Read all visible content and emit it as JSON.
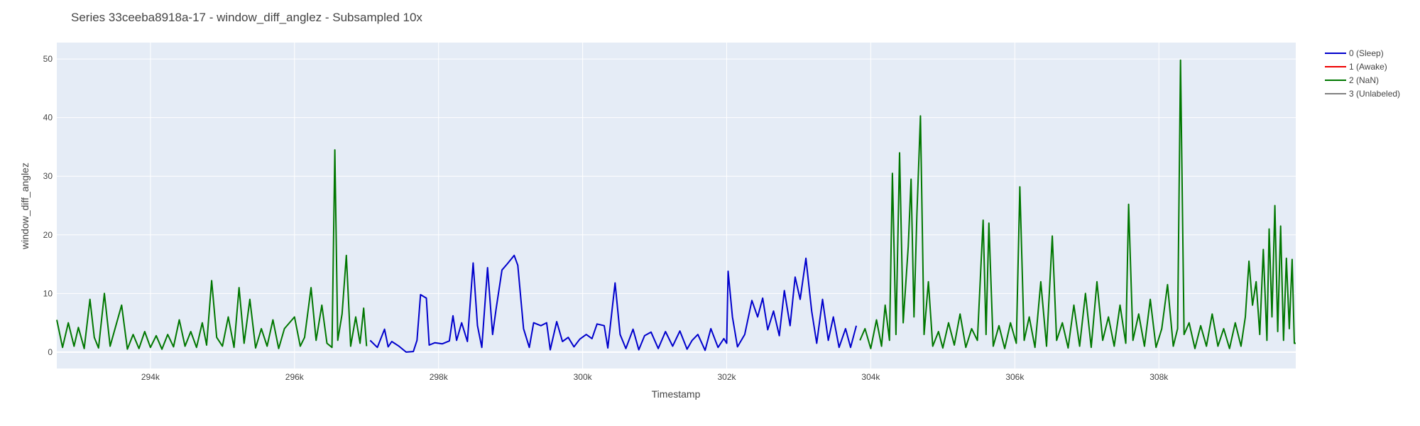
{
  "chart_data": {
    "type": "line",
    "title": "Series 33ceeba8918a-17 - window_diff_anglez - Subsampled 10x",
    "xlabel": "Timestamp",
    "ylabel": "window_diff_anglez",
    "xlim": [
      292700,
      309900
    ],
    "ylim": [
      -2.8,
      52.8
    ],
    "grid": true,
    "legend_position": "top-right",
    "x_ticks": [
      {
        "value": 294000,
        "label": "294k"
      },
      {
        "value": 296000,
        "label": "296k"
      },
      {
        "value": 298000,
        "label": "298k"
      },
      {
        "value": 300000,
        "label": "300k"
      },
      {
        "value": 302000,
        "label": "302k"
      },
      {
        "value": 304000,
        "label": "304k"
      },
      {
        "value": 306000,
        "label": "306k"
      },
      {
        "value": 308000,
        "label": "308k"
      }
    ],
    "y_ticks": [
      {
        "value": 0,
        "label": "0"
      },
      {
        "value": 10,
        "label": "10"
      },
      {
        "value": 20,
        "label": "20"
      },
      {
        "value": 30,
        "label": "30"
      },
      {
        "value": 40,
        "label": "40"
      },
      {
        "value": 50,
        "label": "50"
      }
    ],
    "series": [
      {
        "name": "0 (Sleep)",
        "color": "#0000cc",
        "points": [
          [
            297050,
            2.0
          ],
          [
            297150,
            0.8
          ],
          [
            297250,
            3.9
          ],
          [
            297300,
            0.9
          ],
          [
            297350,
            1.8
          ],
          [
            297450,
            1.0
          ],
          [
            297550,
            0.0
          ],
          [
            297650,
            0.1
          ],
          [
            297700,
            2.0
          ],
          [
            297750,
            9.8
          ],
          [
            297830,
            9.2
          ],
          [
            297870,
            1.2
          ],
          [
            297950,
            1.6
          ],
          [
            298050,
            1.4
          ],
          [
            298150,
            1.9
          ],
          [
            298200,
            6.2
          ],
          [
            298250,
            2.0
          ],
          [
            298320,
            5.0
          ],
          [
            298400,
            1.8
          ],
          [
            298480,
            15.2
          ],
          [
            298540,
            4.5
          ],
          [
            298600,
            0.8
          ],
          [
            298680,
            14.4
          ],
          [
            298750,
            3.0
          ],
          [
            298800,
            7.5
          ],
          [
            298880,
            14.0
          ],
          [
            298950,
            15.0
          ],
          [
            299050,
            16.5
          ],
          [
            299100,
            14.8
          ],
          [
            299180,
            4.0
          ],
          [
            299260,
            0.8
          ],
          [
            299320,
            5.0
          ],
          [
            299420,
            4.5
          ],
          [
            299500,
            5.0
          ],
          [
            299550,
            0.4
          ],
          [
            299640,
            5.2
          ],
          [
            299720,
            1.8
          ],
          [
            299800,
            2.5
          ],
          [
            299880,
            0.9
          ],
          [
            299960,
            2.2
          ],
          [
            300050,
            3.0
          ],
          [
            300130,
            2.3
          ],
          [
            300200,
            4.8
          ],
          [
            300300,
            4.5
          ],
          [
            300350,
            0.7
          ],
          [
            300450,
            11.8
          ],
          [
            300520,
            3.0
          ],
          [
            300600,
            0.6
          ],
          [
            300700,
            3.9
          ],
          [
            300780,
            0.4
          ],
          [
            300860,
            2.8
          ],
          [
            300950,
            3.4
          ],
          [
            301050,
            0.6
          ],
          [
            301150,
            3.5
          ],
          [
            301250,
            1.0
          ],
          [
            301350,
            3.6
          ],
          [
            301450,
            0.5
          ],
          [
            301520,
            2.0
          ],
          [
            301600,
            3.0
          ],
          [
            301700,
            0.3
          ],
          [
            301780,
            4.0
          ],
          [
            301880,
            0.8
          ],
          [
            301960,
            2.3
          ],
          [
            302000,
            1.5
          ],
          [
            302020,
            13.8
          ],
          [
            302080,
            6.0
          ],
          [
            302150,
            0.9
          ],
          [
            302250,
            3.0
          ],
          [
            302350,
            8.8
          ],
          [
            302430,
            6.0
          ],
          [
            302500,
            9.2
          ],
          [
            302570,
            3.8
          ],
          [
            302650,
            7.0
          ],
          [
            302730,
            2.8
          ],
          [
            302800,
            10.5
          ],
          [
            302880,
            4.5
          ],
          [
            302950,
            12.8
          ],
          [
            303020,
            9.0
          ],
          [
            303100,
            16.0
          ],
          [
            303180,
            7.0
          ],
          [
            303250,
            1.5
          ],
          [
            303330,
            9.0
          ],
          [
            303410,
            2.0
          ],
          [
            303480,
            6.0
          ],
          [
            303560,
            0.8
          ],
          [
            303650,
            4.0
          ],
          [
            303720,
            0.8
          ],
          [
            303800,
            4.5
          ]
        ]
      },
      {
        "name": "1 (Awake)",
        "color": "#ee0000",
        "points": []
      },
      {
        "name": "2 (NaN)",
        "color": "#007700",
        "points": [
          [
            292700,
            5.5
          ],
          [
            292780,
            0.8
          ],
          [
            292860,
            5.0
          ],
          [
            292940,
            1.0
          ],
          [
            293000,
            4.2
          ],
          [
            293080,
            0.6
          ],
          [
            293160,
            9.0
          ],
          [
            293220,
            2.5
          ],
          [
            293280,
            0.7
          ],
          [
            293360,
            10.0
          ],
          [
            293440,
            1.0
          ],
          [
            293520,
            4.5
          ],
          [
            293600,
            8.0
          ],
          [
            293680,
            0.5
          ],
          [
            293760,
            3.0
          ],
          [
            293840,
            0.6
          ],
          [
            293920,
            3.5
          ],
          [
            294000,
            0.8
          ],
          [
            294080,
            2.8
          ],
          [
            294160,
            0.5
          ],
          [
            294240,
            3.0
          ],
          [
            294320,
            0.9
          ],
          [
            294400,
            5.5
          ],
          [
            294480,
            1.0
          ],
          [
            294560,
            3.5
          ],
          [
            294640,
            0.8
          ],
          [
            294720,
            5.0
          ],
          [
            294780,
            1.2
          ],
          [
            294850,
            12.2
          ],
          [
            294920,
            2.5
          ],
          [
            295000,
            1.0
          ],
          [
            295080,
            6.0
          ],
          [
            295160,
            0.8
          ],
          [
            295230,
            11.0
          ],
          [
            295300,
            1.5
          ],
          [
            295380,
            9.0
          ],
          [
            295460,
            0.7
          ],
          [
            295540,
            4.0
          ],
          [
            295620,
            1.0
          ],
          [
            295700,
            5.5
          ],
          [
            295780,
            0.6
          ],
          [
            295860,
            4.0
          ],
          [
            296000,
            6.0
          ],
          [
            296080,
            1.0
          ],
          [
            296140,
            2.5
          ],
          [
            296230,
            11.0
          ],
          [
            296300,
            2.0
          ],
          [
            296380,
            8.0
          ],
          [
            296450,
            1.5
          ],
          [
            296520,
            0.8
          ],
          [
            296560,
            34.5
          ],
          [
            296600,
            2.0
          ],
          [
            296660,
            6.5
          ],
          [
            296720,
            16.5
          ],
          [
            296780,
            1.0
          ],
          [
            296850,
            6.0
          ],
          [
            296910,
            1.5
          ],
          [
            296960,
            7.5
          ],
          [
            297000,
            1.0
          ]
        ],
        "points_b": [
          [
            303850,
            2.0
          ],
          [
            303920,
            4.0
          ],
          [
            304000,
            0.6
          ],
          [
            304080,
            5.5
          ],
          [
            304150,
            1.0
          ],
          [
            304200,
            8.0
          ],
          [
            304260,
            2.0
          ],
          [
            304300,
            30.5
          ],
          [
            304350,
            3.0
          ],
          [
            304400,
            34.0
          ],
          [
            304450,
            5.0
          ],
          [
            304520,
            18.0
          ],
          [
            304560,
            29.5
          ],
          [
            304600,
            6.0
          ],
          [
            304640,
            23.5
          ],
          [
            304690,
            40.3
          ],
          [
            304740,
            3.0
          ],
          [
            304800,
            12.0
          ],
          [
            304860,
            1.0
          ],
          [
            304940,
            3.5
          ],
          [
            305000,
            0.7
          ],
          [
            305080,
            5.0
          ],
          [
            305160,
            1.2
          ],
          [
            305240,
            6.5
          ],
          [
            305320,
            0.8
          ],
          [
            305400,
            4.0
          ],
          [
            305480,
            2.0
          ],
          [
            305560,
            22.5
          ],
          [
            305600,
            3.0
          ],
          [
            305640,
            22.0
          ],
          [
            305700,
            1.0
          ],
          [
            305780,
            4.5
          ],
          [
            305860,
            0.6
          ],
          [
            305940,
            5.0
          ],
          [
            306020,
            1.5
          ],
          [
            306070,
            28.2
          ],
          [
            306130,
            2.0
          ],
          [
            306200,
            6.0
          ],
          [
            306280,
            0.8
          ],
          [
            306360,
            12.0
          ],
          [
            306440,
            1.0
          ],
          [
            306520,
            19.8
          ],
          [
            306580,
            2.0
          ],
          [
            306660,
            5.0
          ],
          [
            306740,
            0.7
          ],
          [
            306820,
            8.0
          ],
          [
            306900,
            1.0
          ],
          [
            306980,
            10.0
          ],
          [
            307060,
            0.8
          ],
          [
            307140,
            12.0
          ],
          [
            307220,
            2.0
          ],
          [
            307300,
            6.0
          ],
          [
            307380,
            1.0
          ],
          [
            307460,
            8.0
          ],
          [
            307540,
            1.5
          ],
          [
            307580,
            25.2
          ],
          [
            307640,
            2.0
          ],
          [
            307720,
            6.5
          ],
          [
            307800,
            1.0
          ],
          [
            307880,
            9.0
          ],
          [
            307960,
            0.8
          ],
          [
            308040,
            4.0
          ],
          [
            308120,
            11.5
          ],
          [
            308200,
            1.0
          ],
          [
            308260,
            4.0
          ],
          [
            308300,
            49.8
          ],
          [
            308350,
            3.0
          ],
          [
            308420,
            5.0
          ],
          [
            308500,
            0.6
          ],
          [
            308580,
            4.5
          ],
          [
            308660,
            1.0
          ],
          [
            308740,
            6.5
          ],
          [
            308820,
            1.0
          ],
          [
            308900,
            4.0
          ],
          [
            308980,
            0.6
          ],
          [
            309060,
            5.0
          ],
          [
            309140,
            1.0
          ],
          [
            309200,
            6.0
          ],
          [
            309250,
            15.5
          ],
          [
            309300,
            8.0
          ],
          [
            309350,
            12.0
          ],
          [
            309400,
            3.0
          ],
          [
            309450,
            17.5
          ],
          [
            309500,
            2.0
          ],
          [
            309530,
            21.0
          ],
          [
            309570,
            6.0
          ],
          [
            309610,
            25.0
          ],
          [
            309650,
            3.5
          ],
          [
            309690,
            21.5
          ],
          [
            309730,
            2.0
          ],
          [
            309770,
            16.0
          ],
          [
            309810,
            4.0
          ],
          [
            309850,
            15.8
          ],
          [
            309880,
            1.5
          ],
          [
            309900,
            1.5
          ]
        ]
      },
      {
        "name": "3 (Unlabeled)",
        "color": "#808080",
        "points": []
      }
    ]
  }
}
